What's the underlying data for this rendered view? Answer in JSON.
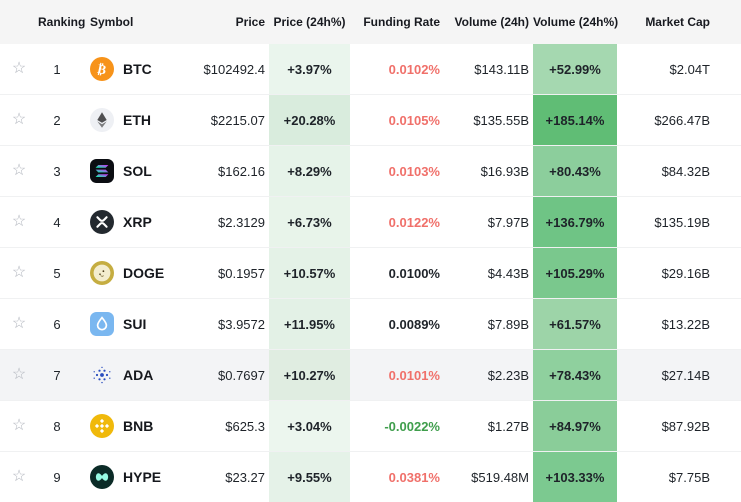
{
  "header": {
    "ranking": "Ranking",
    "symbol": "Symbol",
    "price": "Price",
    "price_change": "Price (24h%)",
    "funding_rate": "Funding Rate",
    "volume": "Volume (24h)",
    "volume_change": "Volume (24h%)",
    "market_cap": "Market Cap"
  },
  "colors": {
    "header_bg": "#f5f5f5",
    "row_bg_default": "#ffffff",
    "row_bg_highlight": "#f3f4f6",
    "separator": "#f0f1f2",
    "text": "#1e2329",
    "funding_red": "#f0706a",
    "funding_green": "#3f9e4c",
    "funding_neutral": "#1e2329"
  },
  "rows": [
    {
      "rank": "1",
      "coin": "BTC",
      "icon": "btc",
      "price": "$102492.4",
      "price_change": "+3.97%",
      "price_change_bg": "#eaf5ed",
      "funding_rate": "0.0102%",
      "funding_rate_color": "#f0706a",
      "volume": "$143.11B",
      "volume_change": "+52.99%",
      "volume_change_bg": "#a5d8b0",
      "market_cap": "$2.04T",
      "row_bg": "#ffffff"
    },
    {
      "rank": "2",
      "coin": "ETH",
      "icon": "eth",
      "price": "$2215.07",
      "price_change": "+20.28%",
      "price_change_bg": "#d9ecdd",
      "funding_rate": "0.0105%",
      "funding_rate_color": "#f0706a",
      "volume": "$135.55B",
      "volume_change": "+185.14%",
      "volume_change_bg": "#60bd75",
      "market_cap": "$266.47B",
      "row_bg": "#ffffff"
    },
    {
      "rank": "3",
      "coin": "SOL",
      "icon": "sol",
      "price": "$162.16",
      "price_change": "+8.29%",
      "price_change_bg": "#e6f3e9",
      "funding_rate": "0.0103%",
      "funding_rate_color": "#f0706a",
      "volume": "$16.93B",
      "volume_change": "+80.43%",
      "volume_change_bg": "#8cce9c",
      "market_cap": "$84.32B",
      "row_bg": "#ffffff"
    },
    {
      "rank": "4",
      "coin": "XRP",
      "icon": "xrp",
      "price": "$2.3129",
      "price_change": "+6.73%",
      "price_change_bg": "#e8f4ea",
      "funding_rate": "0.0122%",
      "funding_rate_color": "#f0706a",
      "volume": "$7.97B",
      "volume_change": "+136.79%",
      "volume_change_bg": "#6fc485",
      "market_cap": "$135.19B",
      "row_bg": "#ffffff"
    },
    {
      "rank": "5",
      "coin": "DOGE",
      "icon": "doge",
      "price": "$0.1957",
      "price_change": "+10.57%",
      "price_change_bg": "#e4f2e7",
      "funding_rate": "0.0100%",
      "funding_rate_color": "#1e2329",
      "volume": "$4.43B",
      "volume_change": "+105.29%",
      "volume_change_bg": "#7ac88d",
      "market_cap": "$29.16B",
      "row_bg": "#ffffff"
    },
    {
      "rank": "6",
      "coin": "SUI",
      "icon": "sui",
      "price": "$3.9572",
      "price_change": "+11.95%",
      "price_change_bg": "#e3f1e6",
      "funding_rate": "0.0089%",
      "funding_rate_color": "#1e2329",
      "volume": "$7.89B",
      "volume_change": "+61.57%",
      "volume_change_bg": "#9dd4a8",
      "market_cap": "$13.22B",
      "row_bg": "#ffffff"
    },
    {
      "rank": "7",
      "coin": "ADA",
      "icon": "ada",
      "price": "$0.7697",
      "price_change": "+10.27%",
      "price_change_bg": "#e0ede1",
      "funding_rate": "0.0101%",
      "funding_rate_color": "#f0706a",
      "volume": "$2.23B",
      "volume_change": "+78.43%",
      "volume_change_bg": "#8fd09e",
      "market_cap": "$27.14B",
      "row_bg": "#f3f4f6"
    },
    {
      "rank": "8",
      "coin": "BNB",
      "icon": "bnb",
      "price": "$625.3",
      "price_change": "+3.04%",
      "price_change_bg": "#ecf6ee",
      "funding_rate": "-0.0022%",
      "funding_rate_color": "#3f9e4c",
      "volume": "$1.27B",
      "volume_change": "+84.97%",
      "volume_change_bg": "#8acd99",
      "market_cap": "$87.92B",
      "row_bg": "#ffffff"
    },
    {
      "rank": "9",
      "coin": "HYPE",
      "icon": "hype",
      "price": "$23.27",
      "price_change": "+9.55%",
      "price_change_bg": "#e5f2e8",
      "funding_rate": "0.0381%",
      "funding_rate_color": "#f0706a",
      "volume": "$519.48M",
      "volume_change": "+103.33%",
      "volume_change_bg": "#7cc990",
      "market_cap": "$7.75B",
      "row_bg": "#ffffff"
    }
  ]
}
